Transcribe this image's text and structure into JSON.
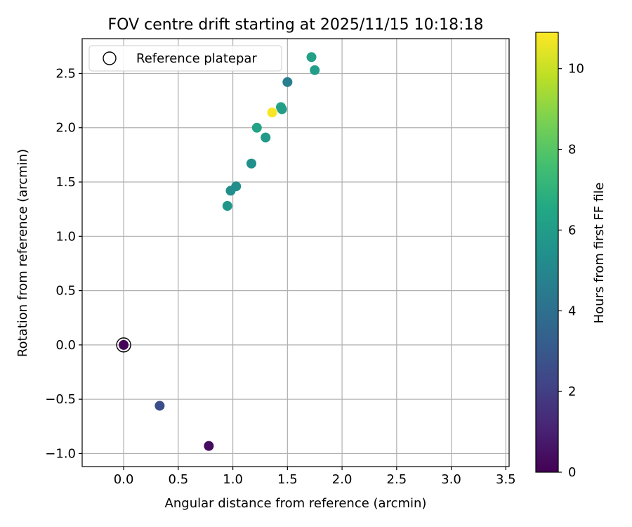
{
  "chart_data": {
    "type": "scatter",
    "title": "FOV centre drift starting at 2025/11/15 10:18:18",
    "xlabel": "Angular distance from reference (arcmin)",
    "ylabel": "Rotation from reference (arcmin)",
    "xlim": [
      -0.38,
      3.53
    ],
    "ylim": [
      -1.12,
      2.82
    ],
    "xticks": [
      0.0,
      0.5,
      1.0,
      1.5,
      2.0,
      2.5,
      3.0,
      3.5
    ],
    "xtick_labels": [
      "0.0",
      "0.5",
      "1.0",
      "1.5",
      "2.0",
      "2.5",
      "3.0",
      "3.5"
    ],
    "yticks": [
      -1.0,
      -0.5,
      0.0,
      0.5,
      1.0,
      1.5,
      2.0,
      2.5
    ],
    "ytick_labels": [
      "−1.0",
      "−0.5",
      "0.0",
      "0.5",
      "1.0",
      "1.5",
      "2.0",
      "2.5"
    ],
    "grid": true,
    "legend": {
      "position": "top-left",
      "entries": [
        "Reference platepar"
      ]
    },
    "colorbar": {
      "label": "Hours from first FF file",
      "colormap": "viridis",
      "range": [
        0,
        10.9
      ],
      "ticks": [
        0,
        2,
        4,
        6,
        8,
        10
      ],
      "tick_labels": [
        "0",
        "2",
        "4",
        "6",
        "8",
        "10"
      ]
    },
    "reference_point": {
      "x": 0.0,
      "y": 0.0
    },
    "points": [
      {
        "x": 0.0,
        "y": 0.0,
        "hours": 0.1
      },
      {
        "x": 0.78,
        "y": -0.93,
        "hours": 0.3
      },
      {
        "x": 0.33,
        "y": -0.56,
        "hours": 2.6
      },
      {
        "x": 0.95,
        "y": 1.28,
        "hours": 5.7
      },
      {
        "x": 0.98,
        "y": 1.42,
        "hours": 5.3
      },
      {
        "x": 1.03,
        "y": 1.46,
        "hours": 5.3
      },
      {
        "x": 1.17,
        "y": 1.67,
        "hours": 5.4
      },
      {
        "x": 1.3,
        "y": 1.91,
        "hours": 5.9
      },
      {
        "x": 1.22,
        "y": 2.0,
        "hours": 6.3
      },
      {
        "x": 1.5,
        "y": 2.42,
        "hours": 4.6
      },
      {
        "x": 1.44,
        "y": 2.19,
        "hours": 6.4
      },
      {
        "x": 1.45,
        "y": 2.17,
        "hours": 6.0
      },
      {
        "x": 1.36,
        "y": 2.14,
        "hours": 10.8
      },
      {
        "x": 1.72,
        "y": 2.65,
        "hours": 6.2
      },
      {
        "x": 1.75,
        "y": 2.53,
        "hours": 6.0
      }
    ]
  }
}
